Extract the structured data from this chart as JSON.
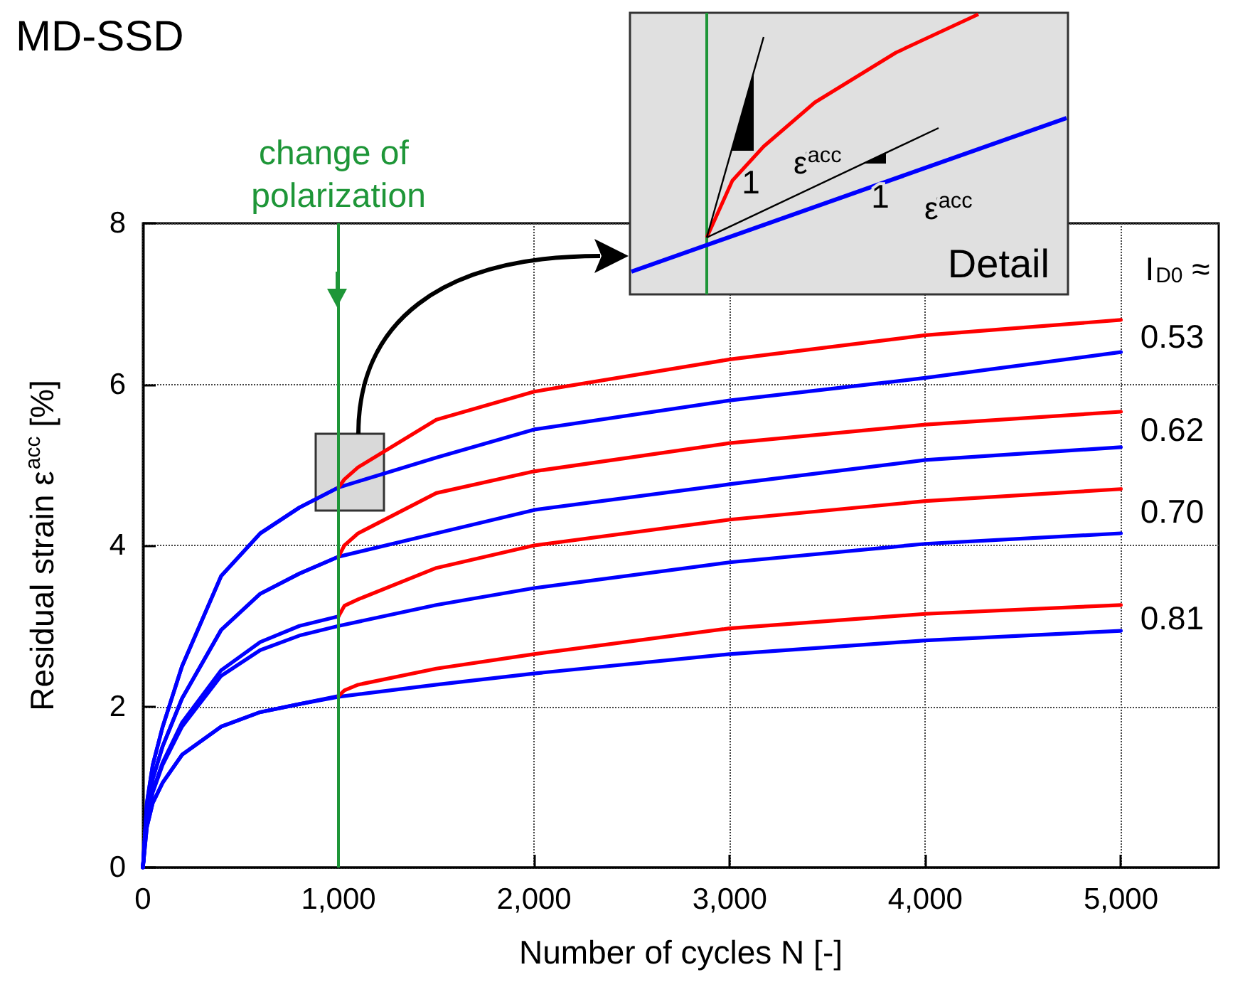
{
  "chart_data": {
    "type": "line",
    "title": "MD-SSD",
    "xlabel": "Number of cycles N [-]",
    "ylabel": "Residual strain ε$^{acc}$ [%]",
    "legend_title": "I$_{D0}$ ≈",
    "xlim": [
      0,
      5500
    ],
    "xticks": [
      0,
      {
        "value": 1000,
        "label": "1,000"
      },
      {
        "value": 2000,
        "label": "2,000"
      },
      {
        "value": 3000,
        "label": "3,000"
      },
      {
        "value": 4000,
        "label": "4,000"
      },
      {
        "value": 5000,
        "label": "5,000"
      }
    ],
    "ylim": [
      0,
      8
    ],
    "yticks": [
      0,
      2,
      4,
      6,
      8
    ],
    "grid": true,
    "marker": "none",
    "line_style": "solid",
    "series": [
      {
        "color": "#0000ff",
        "x": [
          0,
          20,
          50,
          100,
          200,
          400,
          600,
          800,
          1000
        ],
        "values": [
          0,
          0.8,
          1.27,
          1.74,
          2.5,
          3.62,
          4.15,
          4.47,
          4.72
        ]
      },
      {
        "color": "#ff0000",
        "x": [
          1000,
          1030,
          1100,
          1500,
          2000,
          3000,
          4000,
          5000
        ],
        "values": [
          4.72,
          4.82,
          4.97,
          5.56,
          5.91,
          6.31,
          6.61,
          6.8
        ]
      },
      {
        "color": "#0000ff",
        "x": [
          0,
          20,
          50,
          100,
          200,
          400,
          600,
          800,
          1000,
          1500,
          2000,
          3000,
          4000,
          5000
        ],
        "values": [
          0,
          0.8,
          1.27,
          1.74,
          2.5,
          3.62,
          4.15,
          4.47,
          4.72,
          5.09,
          5.44,
          5.8,
          6.08,
          6.4
        ]
      },
      {
        "color": "#0000ff",
        "x": [
          0,
          20,
          50,
          100,
          200,
          400,
          600,
          800,
          1000
        ],
        "values": [
          0,
          0.7,
          1.1,
          1.5,
          2.1,
          2.95,
          3.4,
          3.65,
          3.86
        ]
      },
      {
        "color": "#ff0000",
        "x": [
          1000,
          1030,
          1100,
          1500,
          2000,
          3000,
          4000,
          5000
        ],
        "values": [
          3.86,
          4.0,
          4.15,
          4.65,
          4.92,
          5.27,
          5.5,
          5.66
        ]
      },
      {
        "color": "#0000ff",
        "x": [
          0,
          20,
          50,
          100,
          200,
          400,
          600,
          800,
          1000,
          1500,
          2000,
          3000,
          4000,
          5000
        ],
        "values": [
          0,
          0.7,
          1.1,
          1.5,
          2.1,
          2.95,
          3.4,
          3.65,
          3.86,
          4.15,
          4.44,
          4.76,
          5.06,
          5.22
        ]
      },
      {
        "color": "#0000ff",
        "x": [
          0,
          20,
          50,
          100,
          200,
          400,
          600,
          800,
          1000
        ],
        "values": [
          0,
          0.6,
          0.95,
          1.3,
          1.8,
          2.45,
          2.8,
          3.0,
          3.12
        ]
      },
      {
        "color": "#ff0000",
        "x": [
          1000,
          1030,
          1100,
          1500,
          2000,
          3000,
          4000,
          5000
        ],
        "values": [
          3.12,
          3.25,
          3.33,
          3.72,
          4.0,
          4.32,
          4.55,
          4.7
        ]
      },
      {
        "color": "#0000ff",
        "x": [
          0,
          20,
          50,
          100,
          200,
          400,
          600,
          800,
          1000,
          1500,
          2000,
          3000,
          4000,
          5000
        ],
        "values": [
          0,
          0.6,
          0.93,
          1.27,
          1.75,
          2.38,
          2.7,
          2.88,
          3.0,
          3.26,
          3.47,
          3.79,
          4.02,
          4.15
        ]
      },
      {
        "color": "#0000ff",
        "x": [
          0,
          20,
          50,
          100,
          200,
          400,
          600,
          800,
          1000
        ],
        "values": [
          0,
          0.5,
          0.8,
          1.05,
          1.4,
          1.75,
          1.93,
          2.03,
          2.13
        ]
      },
      {
        "color": "#ff0000",
        "x": [
          1000,
          1030,
          1100,
          1500,
          2000,
          3000,
          4000,
          5000
        ],
        "values": [
          2.13,
          2.2,
          2.27,
          2.47,
          2.65,
          2.97,
          3.15,
          3.26
        ]
      },
      {
        "color": "#0000ff",
        "x": [
          0,
          20,
          50,
          100,
          200,
          400,
          600,
          800,
          1000,
          1500,
          2000,
          3000,
          4000,
          5000
        ],
        "values": [
          0,
          0.5,
          0.8,
          1.05,
          1.4,
          1.75,
          1.93,
          2.03,
          2.12,
          2.27,
          2.41,
          2.65,
          2.82,
          2.94
        ]
      }
    ],
    "ref_lines": [
      {
        "axis": "x",
        "value": 1000,
        "label": "change of polarization",
        "color": "#1e9638"
      }
    ],
    "annotations": [
      "0.53",
      "0.62",
      "0.70",
      "0.81",
      "Detail",
      "ε̇$^{acc}$",
      "1",
      "ε̇$^{acc}$",
      "1"
    ]
  }
}
